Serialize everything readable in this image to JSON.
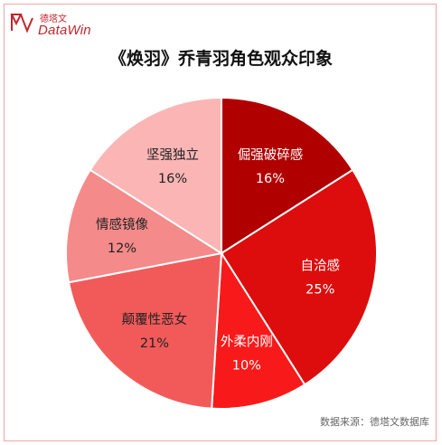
{
  "brand": {
    "cn": "德塔文",
    "en": "DataWin",
    "color": "#c1272d"
  },
  "chart_data": {
    "type": "pie",
    "title": "《焕羽》乔青羽角色观众印象",
    "slices": [
      {
        "label": "倔强破碎感",
        "value": 16,
        "display": "16%",
        "color": "#b00000",
        "text_color": "#ffffff"
      },
      {
        "label": "自洽感",
        "value": 25,
        "display": "25%",
        "color": "#dd0d0d",
        "text_color": "#ffffff"
      },
      {
        "label": "外柔内刚",
        "value": 10,
        "display": "10%",
        "color": "#f81a1a",
        "text_color": "#ffffff"
      },
      {
        "label": "颠覆性恶女",
        "value": 21,
        "display": "21%",
        "color": "#f25a5a",
        "text_color": "#222222"
      },
      {
        "label": "情感镜像",
        "value": 12,
        "display": "12%",
        "color": "#f58a8a",
        "text_color": "#222222"
      },
      {
        "label": "坚强独立",
        "value": 16,
        "display": "16%",
        "color": "#fbb5b5",
        "text_color": "#222222"
      }
    ],
    "start_angle_deg": 0,
    "direction": "clockwise"
  },
  "source": "数据来源：德塔文数据库"
}
